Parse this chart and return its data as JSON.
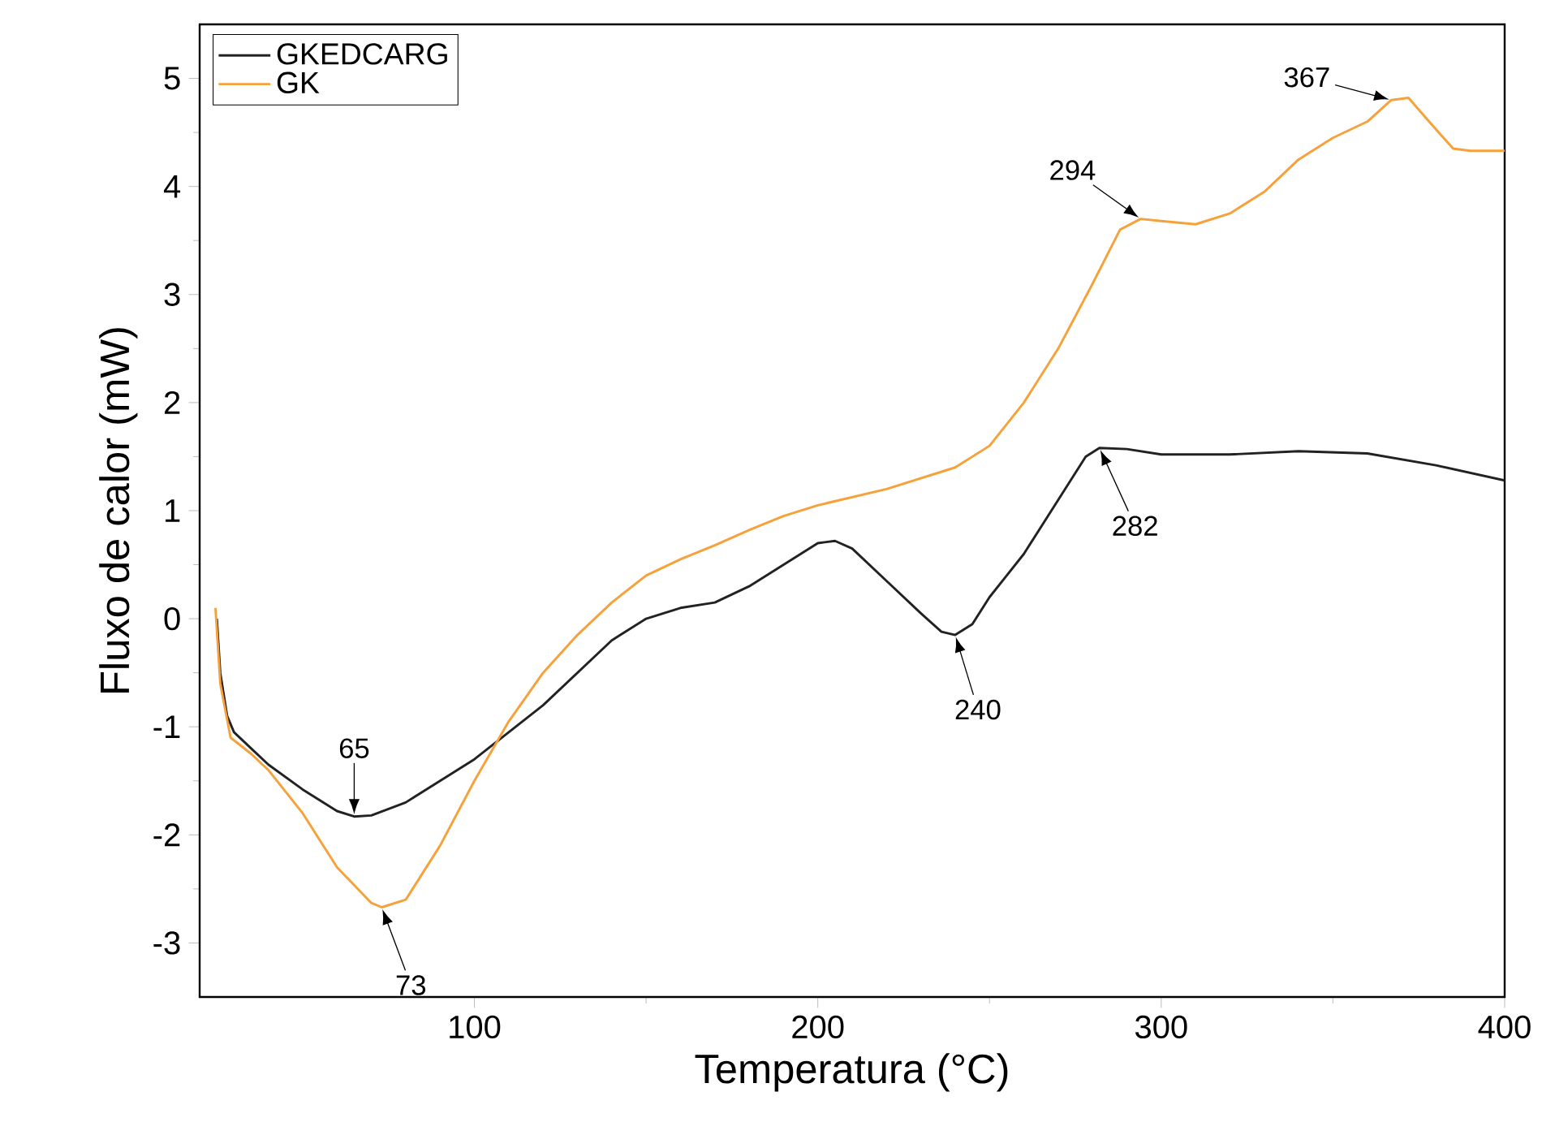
{
  "chart_data": {
    "type": "line",
    "xlabel": "Temperatura (°C)",
    "ylabel": "Fluxo de calor (mW)",
    "xlim": [
      20,
      400
    ],
    "ylim": [
      -3.5,
      5.5
    ],
    "xticks": [
      100,
      200,
      300,
      400
    ],
    "yticks": [
      -3,
      -2,
      -1,
      0,
      1,
      2,
      3,
      4,
      5
    ],
    "legend": "top left",
    "grid": false,
    "line_style": "solid",
    "marker": "none",
    "series": [
      {
        "name": "GKEDCARG",
        "color": "#222222",
        "x": [
          25,
          26,
          28,
          30,
          35,
          40,
          50,
          60,
          65,
          70,
          80,
          90,
          100,
          110,
          120,
          130,
          140,
          150,
          160,
          170,
          180,
          190,
          200,
          205,
          210,
          220,
          230,
          236,
          240,
          245,
          250,
          255,
          260,
          270,
          278,
          282,
          290,
          300,
          320,
          340,
          360,
          380,
          400
        ],
        "values": [
          0,
          -0.5,
          -0.9,
          -1.05,
          -1.2,
          -1.35,
          -1.58,
          -1.78,
          -1.83,
          -1.82,
          -1.7,
          -1.5,
          -1.3,
          -1.05,
          -0.8,
          -0.5,
          -0.2,
          0.0,
          0.1,
          0.15,
          0.3,
          0.5,
          0.7,
          0.72,
          0.65,
          0.35,
          0.05,
          -0.12,
          -0.15,
          -0.05,
          0.2,
          0.4,
          0.6,
          1.1,
          1.5,
          1.58,
          1.57,
          1.52,
          1.52,
          1.55,
          1.53,
          1.42,
          1.28
        ]
      },
      {
        "name": "GK",
        "color": "#f7a13a",
        "x": [
          24.6,
          26,
          29,
          35,
          40,
          50,
          60,
          70,
          73,
          80,
          90,
          100,
          110,
          120,
          130,
          140,
          150,
          160,
          170,
          180,
          190,
          200,
          220,
          240,
          250,
          260,
          270,
          280,
          288,
          294,
          300,
          310,
          320,
          330,
          340,
          350,
          360,
          367,
          372,
          378,
          385,
          390,
          400
        ],
        "values": [
          0.1,
          -0.6,
          -1.1,
          -1.25,
          -1.4,
          -1.8,
          -2.3,
          -2.63,
          -2.67,
          -2.6,
          -2.1,
          -1.5,
          -0.95,
          -0.5,
          -0.15,
          0.15,
          0.4,
          0.55,
          0.68,
          0.82,
          0.95,
          1.05,
          1.2,
          1.4,
          1.6,
          2.0,
          2.5,
          3.1,
          3.6,
          3.7,
          3.68,
          3.65,
          3.75,
          3.95,
          4.25,
          4.45,
          4.6,
          4.8,
          4.82,
          4.6,
          4.35,
          4.33,
          4.33
        ]
      }
    ],
    "annotations": [
      {
        "text": "65",
        "x": 65,
        "y": -1.83
      },
      {
        "text": "73",
        "x": 73,
        "y": -2.67
      },
      {
        "text": "240",
        "x": 240,
        "y": -0.15
      },
      {
        "text": "282",
        "x": 282,
        "y": 1.58
      },
      {
        "text": "294",
        "x": 294,
        "y": 3.7
      },
      {
        "text": "367",
        "x": 367,
        "y": 4.8
      }
    ]
  }
}
